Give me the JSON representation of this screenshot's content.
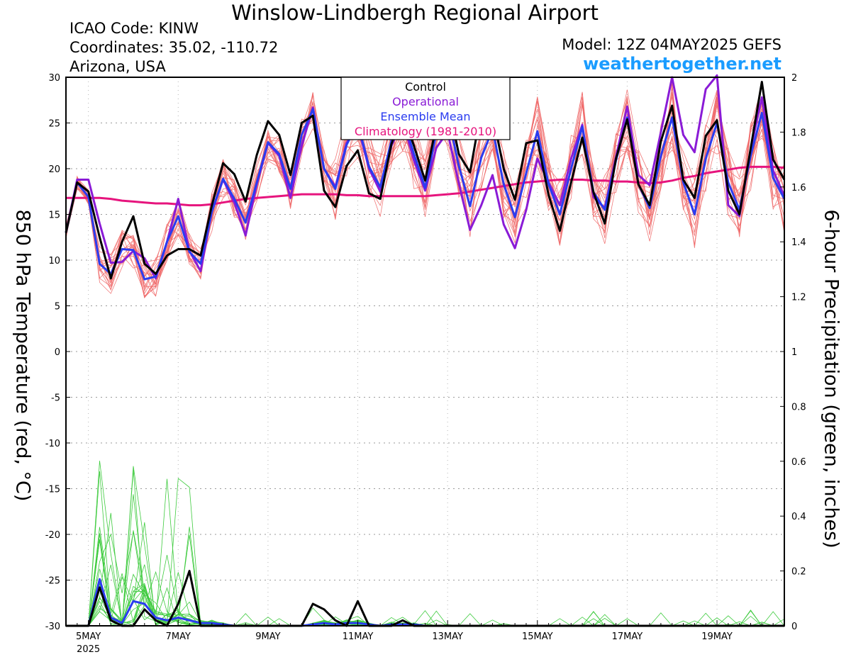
{
  "header": {
    "title": "Winslow-Lindbergh Regional Airport",
    "icao": "ICAO Code: KINW",
    "coords": "Coordinates: 35.02, -110.72",
    "region": "Arizona, USA",
    "model": "Model: 12Z 04MAY2025 GEFS",
    "brand": "weathertogether.net"
  },
  "colors": {
    "control": "#000000",
    "operational": "#8a1bd6",
    "ensemble_mean": "#2a3cf0",
    "climatology": "#e6147d",
    "members_temp": "#f06c6c",
    "members_precip": "#3ecb3e"
  },
  "chart_data": {
    "type": "line",
    "title": "Winslow-Lindbergh Regional Airport",
    "ylabel": "850 hPa Temperature (red, °C)",
    "y2label": "6-hour Precipitation (green, inches)",
    "ylim": [
      -30,
      30
    ],
    "y2lim": [
      0,
      2
    ],
    "yticks": [
      30,
      25,
      20,
      15,
      10,
      5,
      0,
      -5,
      -10,
      -15,
      -20,
      -25,
      -30
    ],
    "y2ticks": [
      2,
      1.8,
      1.6,
      1.4,
      1.2,
      1,
      0.8,
      0.6,
      0.4,
      0.2,
      0
    ],
    "xlim": [
      0,
      64
    ],
    "xticks": [
      {
        "label": "5MAY",
        "sub": "2025",
        "t": 2
      },
      {
        "label": "7MAY",
        "t": 10
      },
      {
        "label": "9MAY",
        "t": 18
      },
      {
        "label": "11MAY",
        "t": 26
      },
      {
        "label": "13MAY",
        "t": 34
      },
      {
        "label": "15MAY",
        "t": 42
      },
      {
        "label": "17MAY",
        "t": 50
      },
      {
        "label": "19MAY",
        "t": 58
      }
    ],
    "grid": true,
    "legend": {
      "placement": "top-center",
      "entries": [
        {
          "label": "Control",
          "color": "#000000"
        },
        {
          "label": "Operational",
          "color": "#8a1bd6"
        },
        {
          "label": "Ensemble Mean",
          "color": "#2a3cf0"
        },
        {
          "label": "Climatology (1981-2010)",
          "color": "#e6147d"
        }
      ]
    },
    "series": [
      {
        "name": "Control",
        "axis": "temp",
        "values": [
          13.0,
          18.5,
          17.5,
          12.5,
          8.0,
          12.0,
          14.8,
          9.6,
          8.5,
          10.5,
          11.2,
          11.2,
          10.5,
          16.0,
          20.6,
          19.4,
          16.4,
          21.5,
          25.2,
          23.7,
          19.3,
          25.0,
          25.8,
          17.6,
          15.8,
          20.3,
          22.0,
          17.3,
          16.7,
          22.7,
          26.0,
          22.5,
          18.7,
          24.8,
          27.5,
          21.6,
          19.6,
          26.5,
          26.0,
          20.0,
          16.6,
          22.8,
          23.1,
          17.1,
          13.2,
          18.5,
          23.4,
          17.4,
          14.0,
          21.1,
          25.4,
          18.3,
          16.0,
          23.0,
          26.9,
          18.8,
          16.8,
          23.6,
          25.3,
          17.6,
          15.0,
          22.2,
          29.5,
          21.0,
          18.8
        ]
      },
      {
        "name": "Operational",
        "axis": "temp",
        "values": [
          13.0,
          18.8,
          18.8,
          14.0,
          9.7,
          9.8,
          11.0,
          10.2,
          8.0,
          12.0,
          16.7,
          11.0,
          8.8,
          15.4,
          18.8,
          16.3,
          12.7,
          18.3,
          22.8,
          21.4,
          16.8,
          22.5,
          26.7,
          20.0,
          18.0,
          22.8,
          24.7,
          20.0,
          17.5,
          22.5,
          25.3,
          20.9,
          17.6,
          22.3,
          24.0,
          18.4,
          13.3,
          16.0,
          19.3,
          13.9,
          11.3,
          15.5,
          21.1,
          18.5,
          16.0,
          21.1,
          24.8,
          16.9,
          15.7,
          21.3,
          26.8,
          19.3,
          18.2,
          24.0,
          30.0,
          23.7,
          21.8,
          28.7,
          30.2,
          16.0,
          14.8,
          22.1,
          27.8,
          19.8,
          17.0
        ]
      },
      {
        "name": "Ensemble Mean",
        "axis": "temp",
        "values": [
          13.0,
          18.5,
          16.9,
          9.6,
          8.5,
          11.2,
          11.1,
          7.9,
          8.2,
          12.0,
          14.8,
          10.9,
          9.6,
          15.3,
          18.9,
          16.7,
          14.1,
          18.5,
          22.9,
          21.6,
          17.8,
          23.7,
          26.5,
          20.0,
          17.8,
          22.6,
          25.0,
          20.2,
          18.0,
          23.1,
          25.7,
          21.6,
          17.9,
          23.9,
          26.0,
          20.3,
          15.9,
          21.2,
          24.3,
          18.3,
          14.7,
          19.5,
          24.1,
          18.3,
          15.0,
          20.0,
          24.6,
          17.4,
          15.5,
          20.9,
          25.6,
          18.3,
          15.7,
          21.4,
          25.6,
          18.5,
          15.0,
          21.1,
          25.0,
          18.5,
          15.5,
          21.4,
          26.1,
          19.0,
          16.7
        ]
      },
      {
        "name": "Climatology (1981-2010)",
        "axis": "temp",
        "values": [
          16.8,
          16.8,
          16.8,
          16.8,
          16.7,
          16.5,
          16.4,
          16.3,
          16.2,
          16.2,
          16.1,
          16.0,
          16.0,
          16.1,
          16.3,
          16.5,
          16.7,
          16.8,
          16.9,
          17.0,
          17.1,
          17.2,
          17.2,
          17.2,
          17.2,
          17.1,
          17.1,
          17.0,
          17.0,
          17.0,
          17.0,
          17.0,
          17.0,
          17.1,
          17.2,
          17.3,
          17.5,
          17.7,
          17.9,
          18.1,
          18.3,
          18.5,
          18.6,
          18.7,
          18.8,
          18.8,
          18.8,
          18.7,
          18.7,
          18.6,
          18.6,
          18.5,
          18.4,
          18.5,
          18.7,
          19.0,
          19.2,
          19.5,
          19.7,
          19.9,
          20.1,
          20.2,
          20.2,
          20.2,
          20.1
        ]
      },
      {
        "name": "Control",
        "axis": "precip",
        "values": [
          0,
          0,
          0,
          0.14,
          0.02,
          0,
          0,
          0.06,
          0.02,
          0,
          0.08,
          0.2,
          0,
          0,
          0,
          0,
          0,
          0,
          0,
          0,
          0,
          0,
          0.08,
          0.06,
          0.02,
          0,
          0.09,
          0,
          0,
          0,
          0.02,
          0,
          0,
          0,
          0,
          0,
          0,
          0,
          0,
          0,
          0,
          0,
          0,
          0,
          0,
          0,
          0,
          0,
          0,
          0,
          0,
          0,
          0,
          0,
          0,
          0,
          0,
          0,
          0,
          0,
          0,
          0,
          0,
          0,
          0
        ]
      },
      {
        "name": "Ensemble Mean",
        "axis": "precip",
        "values": [
          0,
          0,
          0,
          0.17,
          0.03,
          0.01,
          0.09,
          0.08,
          0.03,
          0.02,
          0.03,
          0.02,
          0.01,
          0.01,
          0.005,
          0,
          0,
          0,
          0,
          0,
          0,
          0,
          0.005,
          0.01,
          0.005,
          0.01,
          0.01,
          0.005,
          0,
          0.005,
          0.005,
          0.005,
          0,
          0,
          0,
          0,
          0,
          0,
          0,
          0,
          0,
          0,
          0,
          0,
          0,
          0,
          0,
          0,
          0,
          0,
          0,
          0,
          0,
          0,
          0,
          0,
          0,
          0,
          0,
          0,
          0,
          0,
          0,
          0,
          0
        ]
      }
    ]
  }
}
